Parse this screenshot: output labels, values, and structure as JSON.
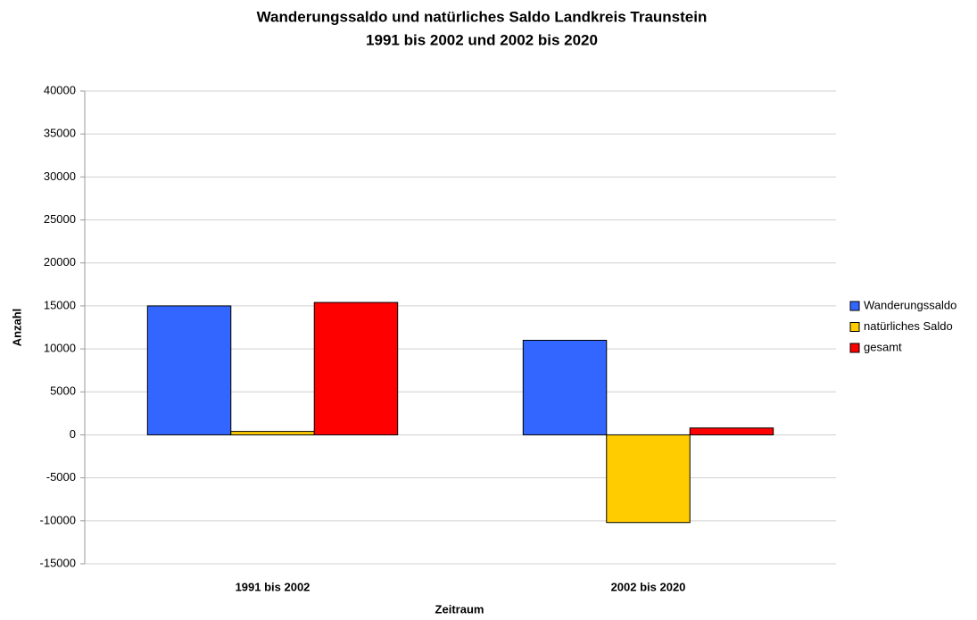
{
  "chart_data": {
    "type": "bar",
    "title": "Wanderungssaldo und natürliches Saldo Landkreis Traunstein",
    "subtitle": "1991 bis 2002 und 2002 bis 2020",
    "x_label": "Zeitraum",
    "y_label": "Anzahl",
    "categories": [
      "1991 bis 2002",
      "2002 bis 2020"
    ],
    "series": [
      {
        "name": "Wanderungssaldo",
        "color": "#3366ff",
        "values": [
          15000,
          11000
        ]
      },
      {
        "name": "natürliches Saldo",
        "color": "#ffcc00",
        "values": [
          400,
          -10200
        ]
      },
      {
        "name": "gesamt",
        "color": "#ff0000",
        "values": [
          15400,
          800
        ]
      }
    ],
    "ylim": [
      -15000,
      40000
    ],
    "yticks": [
      -15000,
      -10000,
      -5000,
      0,
      5000,
      10000,
      15000,
      20000,
      25000,
      30000,
      35000,
      40000
    ],
    "grid": true,
    "legend": "right"
  }
}
